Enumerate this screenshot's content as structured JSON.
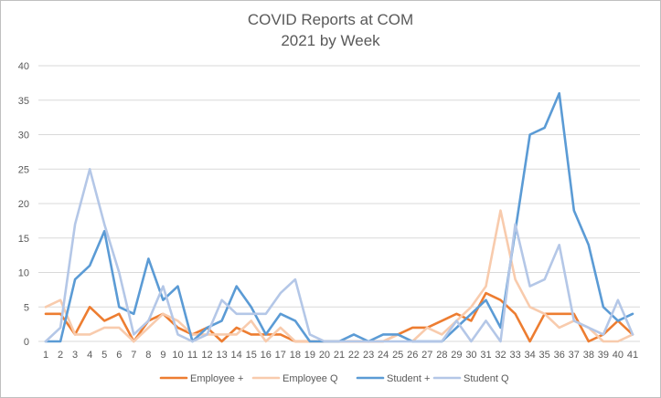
{
  "chart_data": {
    "type": "line",
    "title": "COVID Reports at COM",
    "subtitle": "2021 by Week",
    "xlabel": "",
    "ylabel": "",
    "ylim": [
      0,
      40
    ],
    "yticks": [
      "0",
      "5",
      "10",
      "15",
      "20",
      "25",
      "30",
      "35",
      "40"
    ],
    "grid": true,
    "legend_position": "bottom",
    "x": [
      1,
      2,
      3,
      4,
      5,
      6,
      7,
      8,
      9,
      10,
      11,
      12,
      13,
      14,
      15,
      16,
      17,
      18,
      19,
      20,
      21,
      22,
      23,
      24,
      25,
      26,
      27,
      28,
      29,
      30,
      31,
      32,
      33,
      34,
      35,
      36,
      37,
      38,
      39,
      40,
      41
    ],
    "series": [
      {
        "name": "Employee +",
        "color": "#ed7d31",
        "values": [
          4,
          4,
          1,
          5,
          3,
          4,
          0,
          3,
          4,
          2,
          1,
          2,
          0,
          2,
          1,
          1,
          1,
          0,
          0,
          0,
          0,
          0,
          0,
          0,
          1,
          2,
          2,
          3,
          4,
          3,
          7,
          6,
          4,
          0,
          4,
          4,
          4,
          0,
          1,
          3,
          1
        ]
      },
      {
        "name": "Employee Q",
        "color": "#f8cbad",
        "values": [
          5,
          6,
          1,
          1,
          2,
          2,
          0,
          2,
          4,
          3,
          1,
          1,
          1,
          1,
          3,
          0,
          2,
          0,
          0,
          0,
          0,
          0,
          0,
          0,
          1,
          0,
          2,
          1,
          3,
          5,
          8,
          19,
          9,
          5,
          4,
          2,
          3,
          2,
          0,
          0,
          1
        ]
      },
      {
        "name": "Student +",
        "color": "#5b9bd5",
        "values": [
          0,
          0,
          9,
          11,
          16,
          5,
          4,
          12,
          6,
          8,
          0,
          2,
          3,
          8,
          5,
          1,
          4,
          3,
          0,
          0,
          0,
          1,
          0,
          1,
          1,
          0,
          0,
          0,
          2,
          4,
          6,
          2,
          16,
          30,
          31,
          36,
          19,
          14,
          5,
          3,
          4
        ]
      },
      {
        "name": "Student Q",
        "color": "#b4c7e7",
        "values": [
          0,
          2,
          17,
          25,
          17,
          10,
          1,
          3,
          8,
          1,
          0,
          1,
          6,
          4,
          4,
          4,
          7,
          9,
          1,
          0,
          0,
          0,
          0,
          0,
          0,
          0,
          0,
          0,
          3,
          0,
          3,
          0,
          17,
          8,
          9,
          14,
          3,
          2,
          1,
          6,
          1
        ]
      }
    ]
  }
}
